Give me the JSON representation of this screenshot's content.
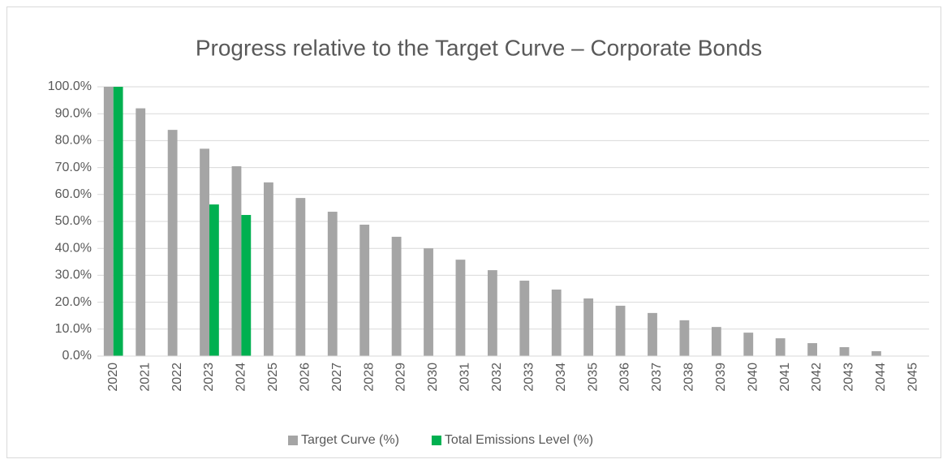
{
  "chart_data": {
    "type": "bar",
    "title": "Progress relative to the Target Curve – Corporate Bonds",
    "categories": [
      "2020",
      "2021",
      "2022",
      "2023",
      "2024",
      "2025",
      "2026",
      "2027",
      "2028",
      "2029",
      "2030",
      "2031",
      "2032",
      "2033",
      "2034",
      "2035",
      "2036",
      "2037",
      "2038",
      "2039",
      "2040",
      "2041",
      "2042",
      "2043",
      "2044",
      "2045"
    ],
    "series": [
      {
        "name": "Target Curve (%)",
        "color": "#a5a5a5",
        "values": [
          100,
          92,
          84,
          77,
          70.5,
          64.5,
          58.7,
          53.6,
          48.8,
          44.3,
          40,
          35.8,
          31.9,
          28,
          24.7,
          21.4,
          18.7,
          16,
          13.3,
          10.8,
          8.7,
          6.6,
          4.8,
          3.3,
          1.8,
          0
        ]
      },
      {
        "name": "Total Emissions Level (%)",
        "color": "#00b050",
        "values": [
          100,
          null,
          null,
          56.3,
          52.4,
          null,
          null,
          null,
          null,
          null,
          null,
          null,
          null,
          null,
          null,
          null,
          null,
          null,
          null,
          null,
          null,
          null,
          null,
          null,
          null,
          null
        ]
      }
    ],
    "ylim": [
      0,
      100
    ],
    "yticks": [
      {
        "value": 0,
        "label": "0.0%"
      },
      {
        "value": 10,
        "label": "10.0%"
      },
      {
        "value": 20,
        "label": "20.0%"
      },
      {
        "value": 30,
        "label": "30.0%"
      },
      {
        "value": 40,
        "label": "40.0%"
      },
      {
        "value": 50,
        "label": "50.0%"
      },
      {
        "value": 60,
        "label": "60.0%"
      },
      {
        "value": 70,
        "label": "70.0%"
      },
      {
        "value": 80,
        "label": "80.0%"
      },
      {
        "value": 90,
        "label": "90.0%"
      },
      {
        "value": 100,
        "label": "100.0%"
      }
    ],
    "grid": true,
    "legend": "bottom"
  }
}
